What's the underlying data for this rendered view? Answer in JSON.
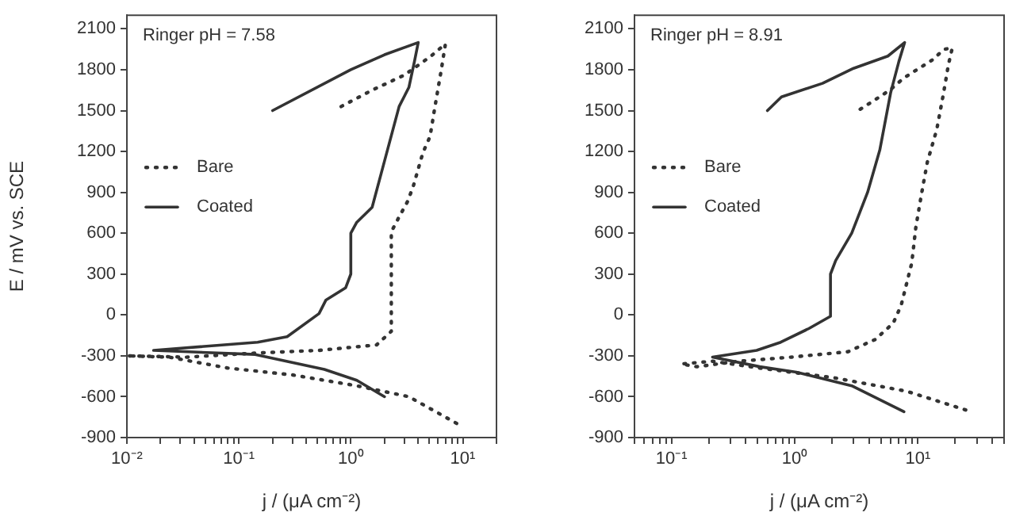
{
  "chart_data": [
    {
      "type": "line",
      "annotations": [
        "Ringer pH = 7.58"
      ],
      "xlabel": "j / (μA cm⁻²)",
      "ylabel": "E / mV vs. SCE",
      "log": "x",
      "grid": false,
      "legend": "left",
      "marker": "none",
      "xlim": [
        0.01,
        20
      ],
      "ylim": [
        -900,
        2200
      ],
      "xticks": [
        {
          "value": 0.01,
          "label": "10⁻²"
        },
        {
          "value": 0.02,
          "label": null
        },
        {
          "value": 0.03,
          "label": null
        },
        {
          "value": 0.04,
          "label": null
        },
        {
          "value": 0.05,
          "label": null
        },
        {
          "value": 0.06,
          "label": null
        },
        {
          "value": 0.07,
          "label": null
        },
        {
          "value": 0.08,
          "label": null
        },
        {
          "value": 0.09,
          "label": null
        },
        {
          "value": 0.1,
          "label": "10⁻¹"
        },
        {
          "value": 0.2,
          "label": null
        },
        {
          "value": 0.3,
          "label": null
        },
        {
          "value": 0.4,
          "label": null
        },
        {
          "value": 0.5,
          "label": null
        },
        {
          "value": 0.6,
          "label": null
        },
        {
          "value": 0.7,
          "label": null
        },
        {
          "value": 0.8,
          "label": null
        },
        {
          "value": 0.9,
          "label": null
        },
        {
          "value": 1,
          "label": "10⁰"
        },
        {
          "value": 2,
          "label": null
        },
        {
          "value": 3,
          "label": null
        },
        {
          "value": 4,
          "label": null
        },
        {
          "value": 5,
          "label": null
        },
        {
          "value": 6,
          "label": null
        },
        {
          "value": 7,
          "label": null
        },
        {
          "value": 8,
          "label": null
        },
        {
          "value": 9,
          "label": null
        },
        {
          "value": 10,
          "label": "10¹"
        },
        {
          "value": 20,
          "label": null
        }
      ],
      "yticks": [
        -900,
        -600,
        -300,
        0,
        300,
        600,
        900,
        1200,
        1500,
        1800,
        2100
      ],
      "series": [
        {
          "name": "Bare",
          "color": "#333333",
          "line_style": "dotted",
          "x": [
            0.82,
            1.55,
            3.0,
            5.2,
            7.0,
            6.4,
            5.7,
            5.1,
            4.4,
            3.6,
            3.2,
            2.7,
            2.3,
            2.3,
            1.7,
            0.52,
            0.14,
            0.034,
            0.01,
            0.024,
            0.08,
            0.3,
            1.13,
            3.3,
            9.0
          ],
          "values": [
            1530,
            1650,
            1760,
            1900,
            1990,
            1790,
            1550,
            1310,
            1190,
            940,
            830,
            720,
            610,
            -120,
            -220,
            -260,
            -280,
            -310,
            -300,
            -310,
            -390,
            -440,
            -520,
            -600,
            -800
          ]
        },
        {
          "name": "Coated",
          "color": "#333333",
          "line_style": "solid",
          "x": [
            0.2,
            1.0,
            2.0,
            4.0,
            3.7,
            3.3,
            2.7,
            2.0,
            1.55,
            1.13,
            1.0,
            1.0,
            0.9,
            0.6,
            0.52,
            0.27,
            0.147,
            0.0173,
            0.14,
            0.58,
            1.13,
            2.0
          ],
          "values": [
            1500,
            1800,
            1910,
            2000,
            1860,
            1670,
            1530,
            1130,
            790,
            680,
            600,
            300,
            200,
            110,
            10,
            -160,
            -200,
            -260,
            -290,
            -400,
            -480,
            -600
          ]
        }
      ]
    },
    {
      "type": "line",
      "annotations": [
        "Ringer pH = 8.91"
      ],
      "xlabel": "j / (μA cm⁻²)",
      "log": "x",
      "grid": false,
      "legend": "left",
      "marker": "none",
      "xlim": [
        0.05,
        50
      ],
      "ylim": [
        -900,
        2200
      ],
      "xticks": [
        {
          "value": 0.05,
          "label": null
        },
        {
          "value": 0.06,
          "label": null
        },
        {
          "value": 0.07,
          "label": null
        },
        {
          "value": 0.08,
          "label": null
        },
        {
          "value": 0.09,
          "label": null
        },
        {
          "value": 0.1,
          "label": "10⁻¹"
        },
        {
          "value": 0.2,
          "label": null
        },
        {
          "value": 0.3,
          "label": null
        },
        {
          "value": 0.4,
          "label": null
        },
        {
          "value": 0.5,
          "label": null
        },
        {
          "value": 0.6,
          "label": null
        },
        {
          "value": 0.7,
          "label": null
        },
        {
          "value": 0.8,
          "label": null
        },
        {
          "value": 0.9,
          "label": null
        },
        {
          "value": 1,
          "label": "10⁰"
        },
        {
          "value": 2,
          "label": null
        },
        {
          "value": 3,
          "label": null
        },
        {
          "value": 4,
          "label": null
        },
        {
          "value": 5,
          "label": null
        },
        {
          "value": 6,
          "label": null
        },
        {
          "value": 7,
          "label": null
        },
        {
          "value": 8,
          "label": null
        },
        {
          "value": 9,
          "label": null
        },
        {
          "value": 10,
          "label": "10¹"
        },
        {
          "value": 20,
          "label": null
        },
        {
          "value": 30,
          "label": null
        },
        {
          "value": 40,
          "label": null
        },
        {
          "value": 50,
          "label": null
        }
      ],
      "yticks": [
        -900,
        -600,
        -300,
        0,
        300,
        600,
        900,
        1200,
        1500,
        1800,
        2100
      ],
      "series": [
        {
          "name": "Bare",
          "color": "#333333",
          "line_style": "dotted",
          "x": [
            3.4,
            4.5,
            5.9,
            7.7,
            9.8,
            13,
            16.3,
            19,
            17.7,
            16,
            14.2,
            11.9,
            10.6,
            9.6,
            8.9,
            7.3,
            6.3,
            4.5,
            2.7,
            0.93,
            0.35,
            0.16,
            0.12,
            0.215,
            0.52,
            2.05,
            8.1,
            24.9
          ],
          "values": [
            1510,
            1580,
            1650,
            1740,
            1800,
            1870,
            1950,
            1960,
            1840,
            1610,
            1360,
            1120,
            870,
            640,
            380,
            70,
            -60,
            -180,
            -270,
            -310,
            -340,
            -380,
            -360,
            -340,
            -390,
            -460,
            -560,
            -700
          ]
        },
        {
          "name": "Coated",
          "color": "#333333",
          "line_style": "solid",
          "x": [
            0.6,
            0.78,
            1.68,
            3.0,
            5.7,
            7.8,
            7.0,
            6.0,
            4.9,
            3.9,
            2.9,
            2.15,
            1.95,
            1.95,
            1.3,
            0.77,
            0.49,
            0.215,
            0.52,
            1.03,
            2.9,
            7.7
          ],
          "values": [
            1500,
            1600,
            1700,
            1810,
            1900,
            2000,
            1860,
            1630,
            1210,
            900,
            600,
            400,
            300,
            -10,
            -100,
            -200,
            -260,
            -310,
            -380,
            -420,
            -520,
            -710
          ]
        }
      ]
    }
  ]
}
